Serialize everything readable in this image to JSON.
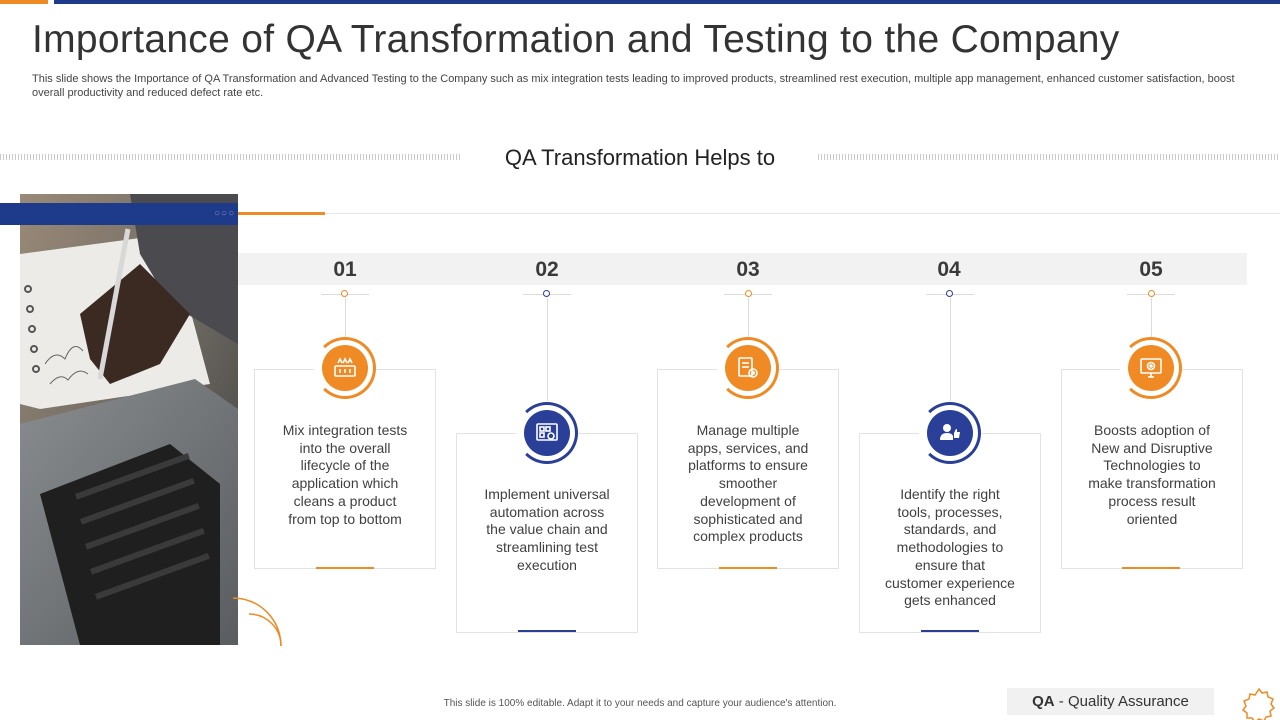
{
  "title": "Importance of QA Transformation and Testing to the Company",
  "subtitle": "This slide shows the Importance of QA Transformation and Advanced Testing to the Company such as mix integration tests leading to improved products, streamlined rest execution, multiple app management, enhanced customer satisfaction, boost overall productivity and reduced defect rate etc.",
  "section_heading": "QA Transformation Helps to",
  "steps": [
    {
      "number": "01",
      "text": "Mix integration tests into the overall lifecycle of the application which cleans a product from top to bottom",
      "icon": "integration-board-icon",
      "color": "orange"
    },
    {
      "number": "02",
      "text": "Implement universal automation across the value chain and streamlining test execution",
      "icon": "automation-panel-icon",
      "color": "navy"
    },
    {
      "number": "03",
      "text": "Manage multiple apps, services, and platforms to ensure smoother development of sophisticated and complex products",
      "icon": "document-gear-icon",
      "color": "orange"
    },
    {
      "number": "04",
      "text": "Identify the right tools, processes, standards, and methodologies to ensure that customer experience gets enhanced",
      "icon": "user-thumbs-up-icon",
      "color": "navy"
    },
    {
      "number": "05",
      "text": "Boosts adoption of New and Disruptive Technologies to make transformation process result oriented",
      "icon": "monitor-gear-icon",
      "color": "orange"
    }
  ],
  "footer_note": "This slide is 100% editable. Adapt it to your needs and capture your audience's attention.",
  "legend": {
    "abbr": "QA",
    "separator": " - ",
    "meaning": "Quality Assurance"
  },
  "colors": {
    "accent": "#F08A24",
    "navy": "#2A3F97",
    "top_bar": "#1E3A8A"
  }
}
